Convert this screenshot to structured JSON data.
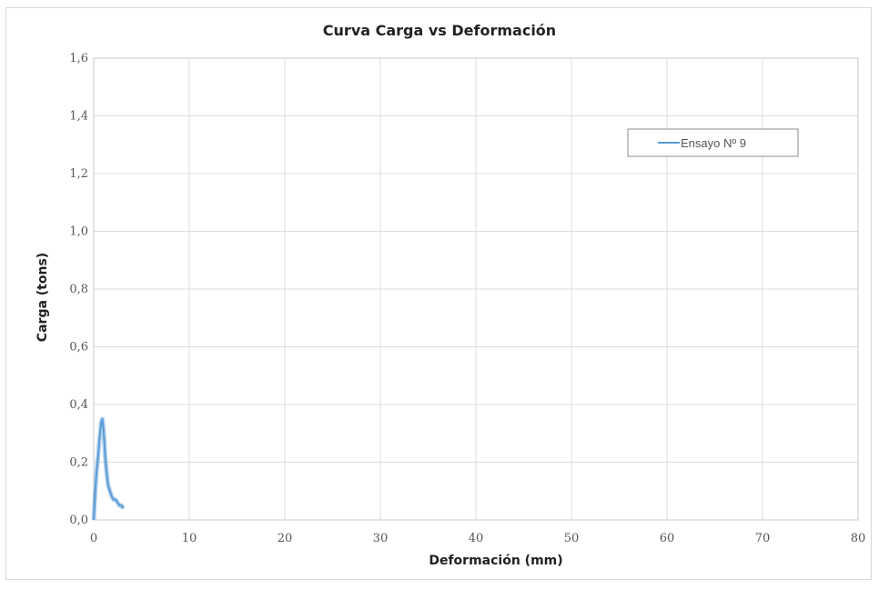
{
  "chart_data": {
    "type": "line",
    "title": "Curva Carga vs Deformación",
    "xlabel": "Deformación (mm)",
    "ylabel": "Carga (tons)",
    "xlim": [
      0,
      80
    ],
    "ylim": [
      0,
      1.6
    ],
    "x_ticks": [
      0,
      10,
      20,
      30,
      40,
      50,
      60,
      70,
      80
    ],
    "y_ticks": [
      0,
      0.2,
      0.4,
      0.6,
      0.8,
      1.0,
      1.2,
      1.4,
      1.6
    ],
    "x_tick_labels": [
      "0",
      "10",
      "20",
      "30",
      "40",
      "50",
      "60",
      "70",
      "80"
    ],
    "y_tick_labels": [
      "0,0",
      "0,2",
      "0,4",
      "0,6",
      "0,8",
      "1,0",
      "1,2",
      "1,4",
      "1,6"
    ],
    "grid": true,
    "legend_position": "top-right",
    "series": [
      {
        "name": "Ensayo Nº 9",
        "color": "#5b9bd5",
        "x": [
          0,
          0.1,
          0.2,
          0.3,
          0.4,
          0.5,
          0.6,
          0.7,
          0.8,
          0.9,
          1.0,
          1.1,
          1.2,
          1.3,
          1.4,
          1.5,
          1.7,
          1.9,
          2.1,
          2.3,
          2.5,
          2.7,
          2.9,
          3.1
        ],
        "y": [
          0,
          0.06,
          0.12,
          0.17,
          0.2,
          0.24,
          0.28,
          0.31,
          0.34,
          0.35,
          0.32,
          0.28,
          0.22,
          0.18,
          0.15,
          0.12,
          0.1,
          0.08,
          0.07,
          0.07,
          0.06,
          0.05,
          0.05,
          0.04
        ]
      }
    ]
  }
}
